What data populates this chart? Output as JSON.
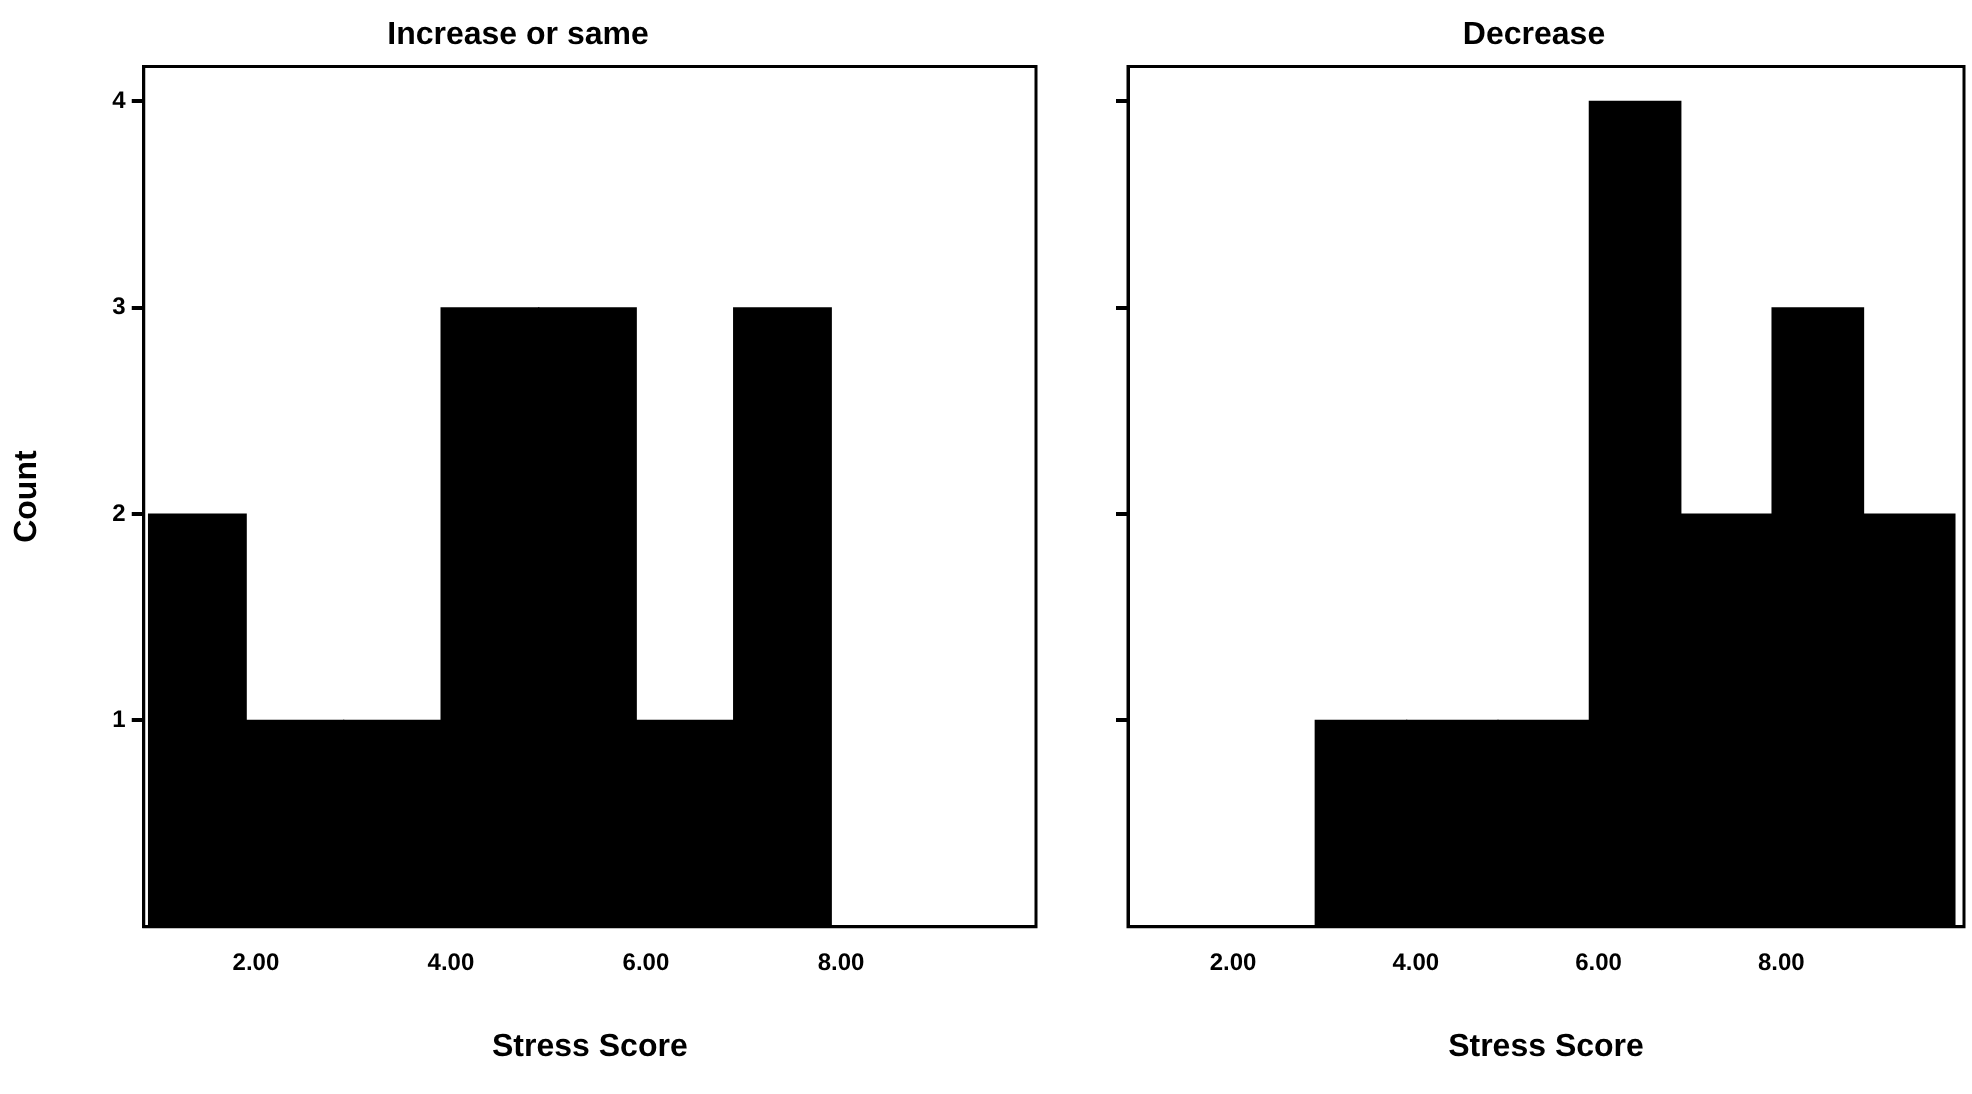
{
  "chart_data": [
    {
      "type": "histogram",
      "title": "Increase or same",
      "xlabel": "Stress Score",
      "ylabel": "Count",
      "color": "#000000",
      "bins": [
        0.9,
        1.9,
        2.9,
        3.9,
        4.9,
        5.9,
        6.9,
        7.9
      ],
      "values": [
        2,
        1,
        1,
        3,
        3,
        1,
        3
      ],
      "xlim": [
        0.85,
        10
      ],
      "xticks": [
        {
          "value": 2,
          "label": "2.00"
        },
        {
          "value": 4,
          "label": "4.00"
        },
        {
          "value": 6,
          "label": "6.00"
        },
        {
          "value": 8,
          "label": "8.00"
        }
      ],
      "ylim": [
        0,
        4.17
      ],
      "yticks": [
        1,
        2,
        3,
        4
      ],
      "grid": false,
      "legend": false
    },
    {
      "type": "histogram",
      "title": "Decrease",
      "xlabel": "Stress Score",
      "color": "#000000",
      "bins": [
        2.9,
        3.9,
        4.9,
        5.9,
        6.9,
        7.9,
        8.9,
        9.9
      ],
      "values": [
        1,
        1,
        1,
        4,
        2,
        3,
        2
      ],
      "xlim": [
        0.85,
        10
      ],
      "xticks": [
        {
          "value": 2,
          "label": "2.00"
        },
        {
          "value": 4,
          "label": "4.00"
        },
        {
          "value": 6,
          "label": "6.00"
        },
        {
          "value": 8,
          "label": "8.00"
        }
      ],
      "ylim": [
        0,
        4.17
      ],
      "yticks": [
        1,
        2,
        3,
        4
      ],
      "tick_labels": "x",
      "grid": false,
      "legend": false
    }
  ]
}
